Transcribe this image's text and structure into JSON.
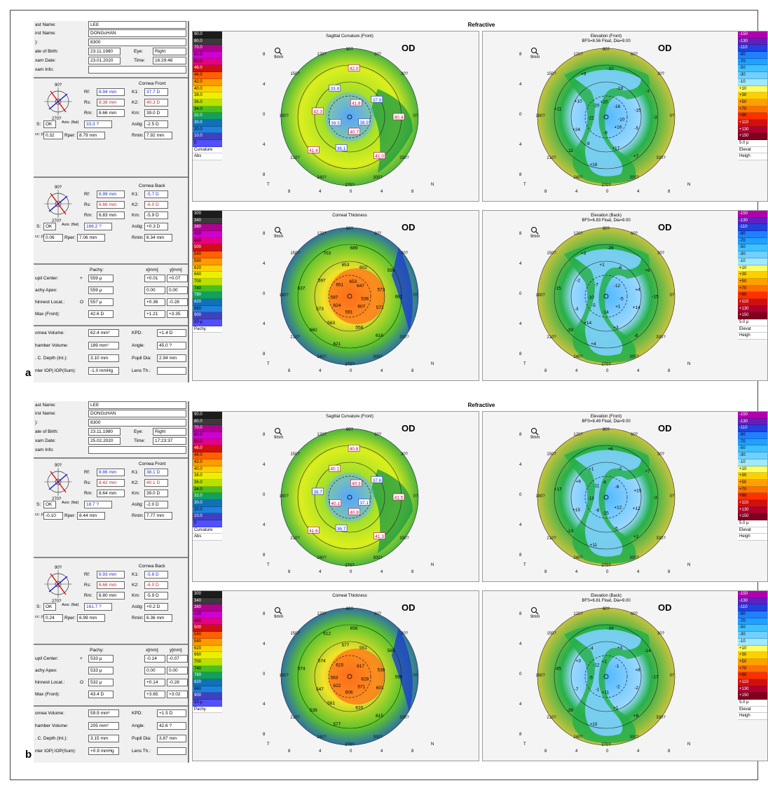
{
  "figure": {
    "label_a": "a",
    "label_b": "b"
  },
  "app": {
    "header_title": "Refractive"
  },
  "panels": [
    {
      "label": "a",
      "patient": {
        "last_name_label": "ast Name:",
        "last_name": "LEE",
        "first_name_label": "irst Name:",
        "first_name": "DONGcHAN",
        "id_label": "):",
        "id": "8300",
        "dob_label": "ate of Birth:",
        "dob": "23.11.1980",
        "eye_label": "Eye:",
        "eye": "Right",
        "exam_date_label": "xam Date:",
        "exam_date": "23.01.2020",
        "time_label": "Time:",
        "time": "16:29:48",
        "exam_info_label": "xam Info:",
        "exam_info": ""
      },
      "cornea_front": {
        "title": "Cornea Front",
        "rf_label": "Rf:",
        "rf": "8.94 mm",
        "k1_label": "K1:",
        "k1": "37.7 D",
        "rs_label": "Rs:",
        "rs": "8.38 mm",
        "k2_label": "K2:",
        "k2": "40.3 D",
        "rm_label": "Rm:",
        "rm": "8.66 mm",
        "km_label": "Km:",
        "km": "39.0 D",
        "qs_label": "S:",
        "qs": "OK",
        "axis_label": "Axis: (flat)",
        "axis": "33.3 ?",
        "astig_label": "Astig:",
        "astig": "-2.5 D",
        "ecc_label": "cc: (mm)",
        "ecc": "0.32",
        "rper_label": "Rper:",
        "rper": "8.79 mm",
        "rmin_label": "Rmin:",
        "rmin": "7.92 mm",
        "crosshair_label": "270?",
        "crosshair_top": "90?"
      },
      "cornea_back": {
        "title": "Cornea Back",
        "rf_label": "Rf:",
        "rf": "6.99 mm",
        "k1_label": "K1:",
        "k1": "-5.7 D",
        "rs_label": "Rs:",
        "rs": "6.66 mm",
        "k2_label": "K2:",
        "k2": "-6.0 D",
        "rm_label": "Rm:",
        "rm": "6.83 mm",
        "km_label": "Km:",
        "km": "-5.9 D",
        "qs_label": "S:",
        "qs": "OK",
        "axis_label": "Axis: (flat)",
        "axis": "166.2 ?",
        "astig_label": "Astig:",
        "astig": "+0.3 D",
        "ecc_label": "cc: (mm)",
        "ecc": "0.06",
        "rper_label": "Rper:",
        "rper": "7.06 mm",
        "rmin_label": "Rmin:",
        "rmin": "6.34 mm",
        "crosshair_label": "270?",
        "crosshair_top": "90?"
      },
      "pachy": {
        "col_pachy": "Pachy:",
        "col_x": "x[mm]",
        "col_y": "y[mm]",
        "rows": [
          {
            "label": "upil Center:",
            "sym": "+",
            "val": "559 µ",
            "x": "+0.01",
            "y": "+0.07"
          },
          {
            "label": "achy Apex:",
            "sym": "",
            "val": "559 µ",
            "x": "0.00",
            "y": "0.00"
          },
          {
            "label": "hinnest Locat.:",
            "sym": "O",
            "val": "557 µ",
            "x": "+0.36",
            "y": "-0.28"
          },
          {
            "label": "Max (Front):",
            "sym": "",
            "val": "42.6 D",
            "x": "+1.21",
            "y": "+3.35"
          }
        ]
      },
      "volumes": {
        "cornea_volume_label": "ornea Volume:",
        "cornea_volume": "62.4 mm³",
        "kpd_label": "KPD:",
        "kpd": "+1.4 D",
        "chamber_volume_label": "hamber Volume:",
        "chamber_volume": "189 mm³",
        "angle_label": "Angle:",
        "angle": "45.0 ?",
        "depth_label": ". C. Depth (Int.):",
        "depth": "3.10 mm",
        "pupil_dia_label": "Pupil Dia:",
        "pupil_dia": "2.94 mm",
        "iop_label": "nter IOP| IOP(Sum):",
        "iop": "-1.0 mmHg",
        "lens_label": "Lens Th.:",
        "lens": ""
      },
      "maps": {
        "sagittal_title": "Sagittal Curvature (Front)",
        "elev_front_title": "Elevation (Front)",
        "elev_front_sub": "BFS=8.56 Float, Dia=9.00",
        "thickness_title": "Corneal Thickness",
        "elev_back_title": "Elevation (Back)",
        "elev_back_sub": "BFS=6.83 Float, Dia=9.00",
        "od": "OD",
        "sag_values": [
          "40.4",
          "41.4",
          "42.0",
          "41.0",
          "42.3",
          "37.9",
          "36.1",
          "33.8",
          "38.9",
          "39.5",
          "41.8",
          "40.7"
        ],
        "elev_front_values": [
          "-3",
          "-11",
          "-10",
          "+7",
          "+11",
          "-3",
          "+16",
          "+9",
          "-5",
          "+24",
          "-19",
          "+17",
          "+10",
          "-15",
          "-9",
          "+20",
          "+16",
          "-22",
          "-16",
          "-8",
          "-20",
          "-10"
        ],
        "thickness_values": [
          "682",
          "662",
          "689",
          "616",
          "637",
          "599",
          "621",
          "703",
          "572",
          "573",
          "602",
          "558",
          "597",
          "573",
          "563",
          "653",
          "607",
          "587",
          "647",
          "591",
          "651",
          "536",
          "624",
          "653"
        ],
        "elev_back_values": [
          "-15",
          "-33",
          "-28",
          "-8",
          "-15",
          "+6",
          "+4",
          "+3",
          "+14",
          "-3",
          "-6",
          "+3",
          "-2",
          "+4",
          "+14",
          "+1",
          "+1",
          "-10",
          "-12",
          "-14",
          "-7",
          "-5",
          "-5"
        ]
      }
    },
    {
      "label": "b",
      "patient": {
        "last_name_label": "ast Name:",
        "last_name": "LEE",
        "first_name_label": "irst Name:",
        "first_name": "DONGcHAN",
        "id_label": "):",
        "id": "8300",
        "dob_label": "ate of Birth:",
        "dob": "23.11.1980",
        "eye_label": "Eye:",
        "eye": "Right",
        "exam_date_label": "xam Date:",
        "exam_date": "25.02.2020",
        "time_label": "Time:",
        "time": "17:23:37",
        "exam_info_label": "xam Info:",
        "exam_info": ""
      },
      "cornea_front": {
        "title": "Cornea Front",
        "rf_label": "Rf:",
        "rf": "8.86 mm",
        "k1_label": "K1:",
        "k1": "38.1 D",
        "rs_label": "Rs:",
        "rs": "8.42 mm",
        "k2_label": "K2:",
        "k2": "40.1 D",
        "rm_label": "Rm:",
        "rm": "8.64 mm",
        "km_label": "Km:",
        "km": "39.0 D",
        "qs_label": "S:",
        "qs": "OK",
        "axis_label": "Axis: (flat)",
        "axis": "18.7 ?",
        "astig_label": "Astig:",
        "astig": "-2.0 D",
        "ecc_label": "cc: (mm)",
        "ecc": "-0.10",
        "rper_label": "Rper:",
        "rper": "8.44 mm",
        "rmin_label": "Rmin:",
        "rmin": "7.77 mm",
        "crosshair_label": "270?",
        "crosshair_top": "90?"
      },
      "cornea_back": {
        "title": "Cornea Back",
        "rf_label": "Rf:",
        "rf": "6.93 mm",
        "k1_label": "K1:",
        "k1": "-5.8 D",
        "rs_label": "Rs:",
        "rs": "6.66 mm",
        "k2_label": "K2:",
        "k2": "-6.0 D",
        "rm_label": "Rm:",
        "rm": "6.80 mm",
        "km_label": "Km:",
        "km": "-5.9 D",
        "qs_label": "S:",
        "qs": "OK",
        "axis_label": "Axis: (flat)",
        "axis": "161.7 ?",
        "astig_label": "Astig:",
        "astig": "+0.2 D",
        "ecc_label": "cc: (mm)",
        "ecc": "0.24",
        "rper_label": "Rper:",
        "rper": "6.99 mm",
        "rmin_label": "Rmin:",
        "rmin": "6.36 mm",
        "crosshair_label": "270?",
        "crosshair_top": "90?"
      },
      "pachy": {
        "col_pachy": "Pachy:",
        "col_x": "x[mm]",
        "col_y": "y[mm]",
        "rows": [
          {
            "label": "upil Center:",
            "sym": "+",
            "val": "533 µ",
            "x": "-0.14",
            "y": "-0.07"
          },
          {
            "label": "achy Apex:",
            "sym": "",
            "val": "533 µ",
            "x": "0.00",
            "y": "0.00"
          },
          {
            "label": "hinnest Locat.:",
            "sym": "O",
            "val": "532 µ",
            "x": "+0.14",
            "y": "-0.28"
          },
          {
            "label": "Max (Front):",
            "sym": "",
            "val": "43.4 D",
            "x": "+3.65",
            "y": "+3.02"
          }
        ]
      },
      "volumes": {
        "cornea_volume_label": "ornea Volume:",
        "cornea_volume": "59.9 mm³",
        "kpd_label": "KPD:",
        "kpd": "+1.5 D",
        "chamber_volume_label": "hamber Volume:",
        "chamber_volume": "205 mm³",
        "angle_label": "Angle:",
        "angle": "42.6 ?",
        "depth_label": ". C. Depth (Int.):",
        "depth": "3.15 mm",
        "pupil_dia_label": "Pupil Dia:",
        "pupil_dia": "3.87 mm",
        "iop_label": "nter IOP| IOP(Sum):",
        "iop": "+0.9 mmHg",
        "lens_label": "Lens Th.:",
        "lens": ""
      },
      "maps": {
        "sagittal_title": "Sagittal Curvature (Front)",
        "elev_front_title": "Elevation (Front)",
        "elev_front_sub": "BFS=8.49 Float, Dia=9.00",
        "thickness_title": "Corneal Thickness",
        "elev_back_title": "Elevation (Back)",
        "elev_back_sub": "BFS=6.81 Float, Dia=9.00",
        "od": "OD",
        "sag_values": [
          "41.5",
          "41.6",
          "40.8",
          "41.3",
          "38.7",
          "37.6",
          "36.7",
          "40.1",
          "37.1",
          "40.1",
          "40.3",
          "40.8"
        ],
        "elev_front_values": [
          "-3",
          "-13",
          "+6",
          "+2",
          "+17",
          "+7",
          "+11",
          "+1",
          "+12",
          "+15",
          "-2",
          "-5",
          "+9",
          "+15",
          "-8",
          "-6",
          "+12",
          "-13",
          "-6",
          "-15",
          "-11"
        ],
        "thickness_values": [
          "595",
          "539",
          "656",
          "615",
          "574",
          "585",
          "577",
          "612",
          "601",
          "547",
          "551",
          "620",
          "574",
          "538",
          "581",
          "577",
          "571",
          "563",
          "617",
          "606",
          "615",
          "628",
          "622"
        ],
        "elev_back_values": [
          "-17",
          "-39",
          "-16",
          "+8",
          "-45",
          "-14",
          "+10",
          "-4",
          "-2",
          "-7",
          "+3",
          "+1",
          "+3",
          "+8",
          "-1",
          "+1",
          "-2",
          "-5",
          "-1",
          "+11",
          "-12"
        ]
      }
    }
  ],
  "scales": {
    "curvature": {
      "labels": [
        "90.0",
        "80.0",
        "70.0",
        "60.0",
        "50.0",
        "46.0",
        "44.0",
        "42.0",
        "40.0",
        "38.0",
        "36.0",
        "34.0",
        "32.0",
        "30.0",
        "20.0",
        "10.0",
        "0"
      ],
      "unit": "Curvature",
      "unit2": "Abs"
    },
    "pachy": {
      "labels": [
        "300",
        "340",
        "380",
        "420",
        "460",
        "500",
        "540",
        "580",
        "620",
        "660",
        "700",
        "740",
        "780",
        "820",
        "860",
        "900",
        "10 µ"
      ],
      "unit": "Pachy."
    },
    "elevation": {
      "labels": [
        "-150",
        "-130",
        "-110",
        "-90",
        "-70",
        "-50",
        "-30",
        "-10",
        "+10",
        "+30",
        "+50",
        "+70",
        "+90",
        "+110",
        "+130",
        "+150",
        "5.0 µ"
      ],
      "unit": "Elevat",
      "unit2": "Heigh"
    },
    "elevation_back_unit": "Elevat"
  },
  "map_common": {
    "mag": "9mm",
    "t": "T",
    "n": "N",
    "top_angle": "90?",
    "bottom_angle": "270?",
    "ticks_x": [
      "8",
      "4",
      "0",
      "4",
      "8"
    ],
    "ticks_y": [
      "8",
      "4",
      "0",
      "4",
      "8"
    ],
    "angles": [
      "120?",
      "60?",
      "150?",
      "30?",
      "180?",
      "0?",
      "210?",
      "330?",
      "240?",
      "300?"
    ]
  },
  "colors": {
    "curvature": [
      "#1c1c1c",
      "#3a3a3a",
      "#b00090",
      "#d000d0",
      "#e80080",
      "#d01010",
      "#ff6000",
      "#ff9a00",
      "#ffd000",
      "#eaf000",
      "#b8e000",
      "#48c020",
      "#10a060",
      "#1070b8",
      "#2080e0",
      "#4040c0",
      "#5050ff"
    ],
    "pachy": [
      "#1c1c1c",
      "#3a3a3a",
      "#b00090",
      "#d000d0",
      "#e80080",
      "#d01010",
      "#ff6000",
      "#ff9a00",
      "#ffd000",
      "#eaf000",
      "#b8e000",
      "#48c020",
      "#10a060",
      "#1070b8",
      "#2080e0",
      "#4040c0",
      "#5050ff"
    ],
    "elevation": [
      "#b000b0",
      "#6020c0",
      "#2040e0",
      "#2080ff",
      "#20a0ff",
      "#40c0ff",
      "#70d0ff",
      "#a0e8ff",
      "#ffff60",
      "#ffd000",
      "#ffa000",
      "#ff7000",
      "#ff3000",
      "#d01010",
      "#b00030",
      "#800020",
      "#ffffff"
    ]
  }
}
